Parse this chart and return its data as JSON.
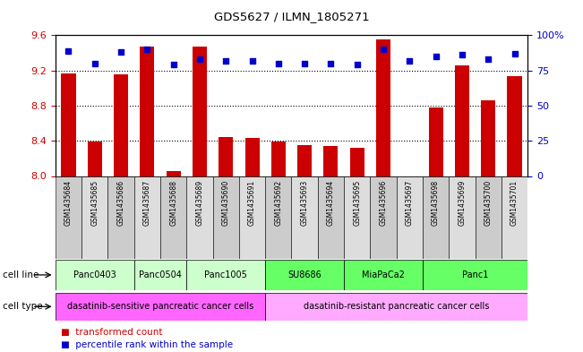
{
  "title": "GDS5627 / ILMN_1805271",
  "samples": [
    "GSM1435684",
    "GSM1435685",
    "GSM1435686",
    "GSM1435687",
    "GSM1435688",
    "GSM1435689",
    "GSM1435690",
    "GSM1435691",
    "GSM1435692",
    "GSM1435693",
    "GSM1435694",
    "GSM1435695",
    "GSM1435696",
    "GSM1435697",
    "GSM1435698",
    "GSM1435699",
    "GSM1435700",
    "GSM1435701"
  ],
  "transformed_count": [
    9.17,
    8.39,
    9.16,
    9.47,
    8.06,
    9.47,
    8.44,
    8.43,
    8.39,
    8.35,
    8.34,
    8.32,
    9.55,
    8.0,
    8.78,
    9.26,
    8.86,
    9.13
  ],
  "percentile_rank": [
    89,
    80,
    88,
    90,
    79,
    83,
    82,
    82,
    80,
    80,
    80,
    79,
    90,
    82,
    85,
    86,
    83,
    87
  ],
  "ylim_left": [
    8.0,
    9.6
  ],
  "ylim_right": [
    0,
    100
  ],
  "yticks_left": [
    8.0,
    8.4,
    8.8,
    9.2,
    9.6
  ],
  "yticks_right": [
    0,
    25,
    50,
    75,
    100
  ],
  "bar_color": "#cc0000",
  "dot_color": "#0000cc",
  "cell_lines": [
    {
      "label": "Panc0403",
      "start": 0,
      "end": 3,
      "color": "#ccffcc"
    },
    {
      "label": "Panc0504",
      "start": 3,
      "end": 5,
      "color": "#ccffcc"
    },
    {
      "label": "Panc1005",
      "start": 5,
      "end": 8,
      "color": "#ccffcc"
    },
    {
      "label": "SU8686",
      "start": 8,
      "end": 11,
      "color": "#66ff66"
    },
    {
      "label": "MiaPaCa2",
      "start": 11,
      "end": 14,
      "color": "#66ff66"
    },
    {
      "label": "Panc1",
      "start": 14,
      "end": 18,
      "color": "#66ff66"
    }
  ],
  "cell_types": [
    {
      "label": "dasatinib-sensitive pancreatic cancer cells",
      "start": 0,
      "end": 8,
      "color": "#ff66ff"
    },
    {
      "label": "dasatinib-resistant pancreatic cancer cells",
      "start": 8,
      "end": 18,
      "color": "#ffaaff"
    }
  ],
  "legend_bar_label": "transformed count",
  "legend_dot_label": "percentile rank within the sample",
  "xlabel_cell_line": "cell line",
  "xlabel_cell_type": "cell type",
  "background_color": "#ffffff",
  "tick_label_color_left": "#cc0000",
  "tick_label_color_right": "#0000cc",
  "sample_bg_color": "#cccccc",
  "sample_alt_bg_color": "#dddddd"
}
